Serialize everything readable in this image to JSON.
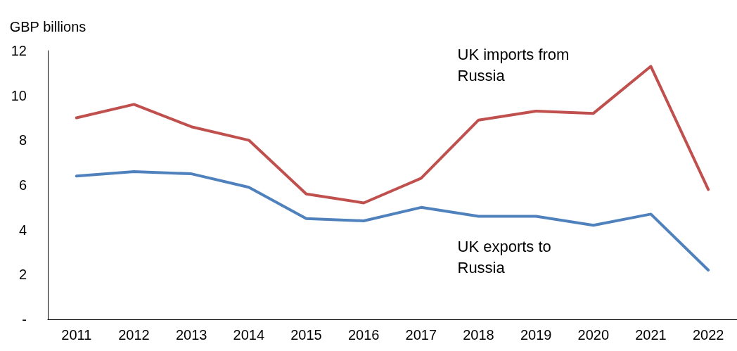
{
  "chart_data": {
    "type": "line",
    "ylabel": "GBP billions",
    "categories": [
      "2011",
      "2012",
      "2013",
      "2014",
      "2015",
      "2016",
      "2017",
      "2018",
      "2019",
      "2020",
      "2021",
      "2022"
    ],
    "series": [
      {
        "name": "UK imports from\nRussia",
        "color": "#c0504d",
        "values": [
          9.0,
          9.6,
          8.6,
          8.0,
          5.6,
          5.2,
          6.3,
          8.9,
          9.3,
          9.2,
          11.3,
          5.8
        ]
      },
      {
        "name": "UK exports to\nRussia",
        "color": "#4f81bd",
        "values": [
          6.4,
          6.6,
          6.5,
          5.9,
          4.5,
          4.4,
          5.0,
          4.6,
          4.6,
          4.2,
          4.7,
          2.2
        ]
      }
    ],
    "ylim": [
      0,
      12
    ],
    "yticks": [
      {
        "value": 0,
        "label": "-"
      },
      2,
      4,
      6,
      8,
      10,
      12
    ],
    "grid": false,
    "marker": "none",
    "line_style": "solid"
  }
}
